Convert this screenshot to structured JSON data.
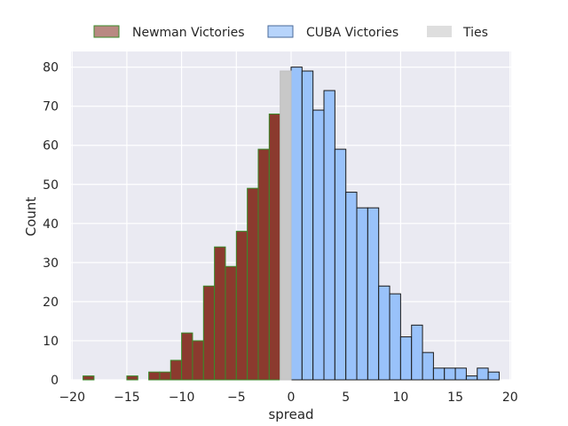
{
  "chart_data": {
    "type": "bar",
    "title": "",
    "xlabel": "spread",
    "ylabel": "Count",
    "xlim": [
      -20.1,
      20.1
    ],
    "ylim": [
      0,
      84
    ],
    "xticks": [
      -20,
      -15,
      -10,
      -5,
      0,
      5,
      10,
      15,
      20
    ],
    "yticks": [
      0,
      10,
      20,
      30,
      40,
      50,
      60,
      70,
      80
    ],
    "grid": true,
    "legend_position": "top-center",
    "bin_width": 1,
    "colors": {
      "background": "#eaeaf2",
      "grid": "#ffffff",
      "newman_fill": "#8b3a2e",
      "newman_edge": "#3a8a2a",
      "cuba_fill": "#99c2fa",
      "cuba_edge": "#1a1a1a",
      "ties_fill": "#c8c8c8",
      "ties_edge": "#bfbfbf"
    },
    "series": [
      {
        "name": "Newman Victories",
        "key": "newman",
        "bins": [
          {
            "x0": -19,
            "value": 1
          },
          {
            "x0": -15,
            "value": 1
          },
          {
            "x0": -13,
            "value": 2
          },
          {
            "x0": -12,
            "value": 2
          },
          {
            "x0": -11,
            "value": 5
          },
          {
            "x0": -10,
            "value": 12
          },
          {
            "x0": -9,
            "value": 10
          },
          {
            "x0": -8,
            "value": 24
          },
          {
            "x0": -7,
            "value": 34
          },
          {
            "x0": -6,
            "value": 29
          },
          {
            "x0": -5,
            "value": 38
          },
          {
            "x0": -4,
            "value": 49
          },
          {
            "x0": -3,
            "value": 59
          },
          {
            "x0": -2,
            "value": 68
          }
        ]
      },
      {
        "name": "CUBA Victories",
        "key": "cuba",
        "bins": [
          {
            "x0": 0,
            "value": 80
          },
          {
            "x0": 1,
            "value": 79
          },
          {
            "x0": 2,
            "value": 69
          },
          {
            "x0": 3,
            "value": 74
          },
          {
            "x0": 4,
            "value": 59
          },
          {
            "x0": 5,
            "value": 48
          },
          {
            "x0": 6,
            "value": 44
          },
          {
            "x0": 7,
            "value": 44
          },
          {
            "x0": 8,
            "value": 24
          },
          {
            "x0": 9,
            "value": 22
          },
          {
            "x0": 10,
            "value": 11
          },
          {
            "x0": 11,
            "value": 14
          },
          {
            "x0": 12,
            "value": 7
          },
          {
            "x0": 13,
            "value": 3
          },
          {
            "x0": 14,
            "value": 3
          },
          {
            "x0": 15,
            "value": 3
          },
          {
            "x0": 16,
            "value": 1
          },
          {
            "x0": 17,
            "value": 3
          },
          {
            "x0": 18,
            "value": 2
          }
        ]
      },
      {
        "name": "Ties",
        "key": "ties",
        "bins": [
          {
            "x0": -1,
            "value": 79
          }
        ]
      }
    ]
  }
}
